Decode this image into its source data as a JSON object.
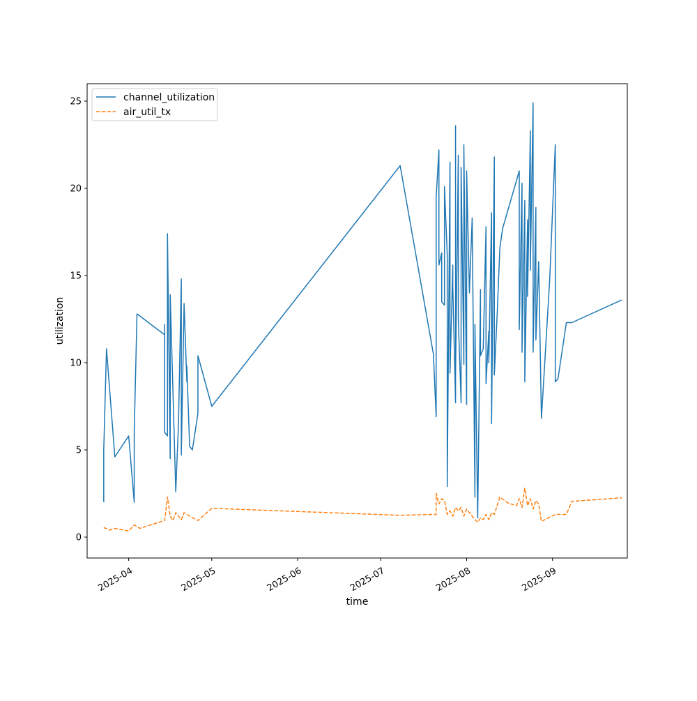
{
  "chart_data": {
    "type": "line",
    "xlabel": "time",
    "ylabel": "utilization",
    "x_axis_type": "date",
    "xlim": [
      "2025-03-17",
      "2025-09-28"
    ],
    "ylim": [
      -1.2,
      26.0
    ],
    "x_ticks": [
      "2025-04-01",
      "2025-05-01",
      "2025-06-01",
      "2025-07-01",
      "2025-08-01",
      "2025-09-01"
    ],
    "x_tick_labels": [
      "2025-04",
      "2025-05",
      "2025-06",
      "2025-07",
      "2025-08",
      "2025-09"
    ],
    "y_ticks": [
      0,
      5,
      10,
      15,
      20,
      25
    ],
    "y_tick_labels": [
      "0",
      "5",
      "10",
      "15",
      "20",
      "25"
    ],
    "grid": false,
    "legend_position": "upper left",
    "series": [
      {
        "name": "channel_utilization",
        "color": "#1f77b4",
        "dash": "solid",
        "points": [
          [
            "2025-03-23",
            2.0
          ],
          [
            "2025-03-23",
            5.0
          ],
          [
            "2025-03-24",
            10.8
          ],
          [
            "2025-03-27",
            4.6
          ],
          [
            "2025-04-01",
            5.8
          ],
          [
            "2025-04-03",
            2.0
          ],
          [
            "2025-04-03",
            6.0
          ],
          [
            "2025-04-04",
            12.8
          ],
          [
            "2025-04-14",
            11.6
          ],
          [
            "2025-04-14",
            12.2
          ],
          [
            "2025-04-14",
            6.0
          ],
          [
            "2025-04-15",
            5.8
          ],
          [
            "2025-04-15",
            17.4
          ],
          [
            "2025-04-16",
            4.5
          ],
          [
            "2025-04-16",
            13.9
          ],
          [
            "2025-04-18",
            2.6
          ],
          [
            "2025-04-19",
            6.6
          ],
          [
            "2025-04-20",
            14.8
          ],
          [
            "2025-04-20",
            4.7
          ],
          [
            "2025-04-21",
            13.4
          ],
          [
            "2025-04-22",
            8.9
          ],
          [
            "2025-04-22",
            9.8
          ],
          [
            "2025-04-23",
            5.2
          ],
          [
            "2025-04-24",
            5.0
          ],
          [
            "2025-04-26",
            7.1
          ],
          [
            "2025-04-26",
            10.4
          ],
          [
            "2025-05-01",
            7.5
          ],
          [
            "2025-07-08",
            21.3
          ],
          [
            "2025-07-20",
            10.5
          ],
          [
            "2025-07-21",
            6.9
          ],
          [
            "2025-07-21",
            19.5
          ],
          [
            "2025-07-22",
            22.2
          ],
          [
            "2025-07-22",
            15.6
          ],
          [
            "2025-07-23",
            16.3
          ],
          [
            "2025-07-23",
            13.5
          ],
          [
            "2025-07-24",
            13.3
          ],
          [
            "2025-07-24",
            20.1
          ],
          [
            "2025-07-25",
            16.2
          ],
          [
            "2025-07-25",
            2.9
          ],
          [
            "2025-07-26",
            21.5
          ],
          [
            "2025-07-26",
            9.4
          ],
          [
            "2025-07-27",
            15.6
          ],
          [
            "2025-07-27",
            14.4
          ],
          [
            "2025-07-28",
            7.7
          ],
          [
            "2025-07-28",
            23.6
          ],
          [
            "2025-07-28",
            9.3
          ],
          [
            "2025-07-29",
            21.9
          ],
          [
            "2025-07-29",
            12.5
          ],
          [
            "2025-07-30",
            7.7
          ],
          [
            "2025-07-30",
            21.2
          ],
          [
            "2025-07-31",
            9.9
          ],
          [
            "2025-07-31",
            22.5
          ],
          [
            "2025-08-01",
            7.6
          ],
          [
            "2025-08-01",
            21.0
          ],
          [
            "2025-08-02",
            14.0
          ],
          [
            "2025-08-03",
            18.3
          ],
          [
            "2025-08-04",
            2.3
          ],
          [
            "2025-08-04",
            12.2
          ],
          [
            "2025-08-05",
            1.1
          ],
          [
            "2025-08-06",
            14.2
          ],
          [
            "2025-08-06",
            10.4
          ],
          [
            "2025-08-07",
            10.8
          ],
          [
            "2025-08-08",
            17.8
          ],
          [
            "2025-08-08",
            8.8
          ],
          [
            "2025-08-09",
            11.8
          ],
          [
            "2025-08-09",
            10.0
          ],
          [
            "2025-08-10",
            18.6
          ],
          [
            "2025-08-10",
            6.5
          ],
          [
            "2025-08-11",
            21.8
          ],
          [
            "2025-08-11",
            9.3
          ],
          [
            "2025-08-12",
            12.7
          ],
          [
            "2025-08-13",
            16.6
          ],
          [
            "2025-08-14",
            17.7
          ],
          [
            "2025-08-20",
            21.0
          ],
          [
            "2025-08-20",
            11.9
          ],
          [
            "2025-08-21",
            20.3
          ],
          [
            "2025-08-21",
            10.6
          ],
          [
            "2025-08-22",
            19.3
          ],
          [
            "2025-08-22",
            8.9
          ],
          [
            "2025-08-23",
            18.2
          ],
          [
            "2025-08-23",
            13.8
          ],
          [
            "2025-08-24",
            23.3
          ],
          [
            "2025-08-24",
            15.3
          ],
          [
            "2025-08-25",
            24.9
          ],
          [
            "2025-08-25",
            10.6
          ],
          [
            "2025-08-26",
            18.9
          ],
          [
            "2025-08-26",
            11.3
          ],
          [
            "2025-08-27",
            15.8
          ],
          [
            "2025-08-28",
            6.8
          ],
          [
            "2025-08-31",
            14.8
          ],
          [
            "2025-09-02",
            22.5
          ],
          [
            "2025-09-02",
            8.9
          ],
          [
            "2025-09-03",
            9.1
          ],
          [
            "2025-09-06",
            12.3
          ],
          [
            "2025-09-08",
            12.3
          ],
          [
            "2025-09-26",
            13.6
          ]
        ]
      },
      {
        "name": "air_util_tx",
        "color": "#ff7f0e",
        "dash": "dashed",
        "points": [
          [
            "2025-03-23",
            0.55
          ],
          [
            "2025-03-25",
            0.4
          ],
          [
            "2025-03-27",
            0.5
          ],
          [
            "2025-04-01",
            0.35
          ],
          [
            "2025-04-03",
            0.7
          ],
          [
            "2025-04-05",
            0.5
          ],
          [
            "2025-04-14",
            0.95
          ],
          [
            "2025-04-15",
            2.3
          ],
          [
            "2025-04-16",
            1.2
          ],
          [
            "2025-04-17",
            0.95
          ],
          [
            "2025-04-18",
            1.4
          ],
          [
            "2025-04-20",
            1.0
          ],
          [
            "2025-04-21",
            1.4
          ],
          [
            "2025-04-23",
            1.2
          ],
          [
            "2025-04-26",
            0.95
          ],
          [
            "2025-05-01",
            1.65
          ],
          [
            "2025-07-08",
            1.25
          ],
          [
            "2025-07-20",
            1.3
          ],
          [
            "2025-07-21",
            1.3
          ],
          [
            "2025-07-21",
            2.5
          ],
          [
            "2025-07-22",
            1.9
          ],
          [
            "2025-07-23",
            2.2
          ],
          [
            "2025-07-24",
            2.1
          ],
          [
            "2025-07-25",
            1.3
          ],
          [
            "2025-07-26",
            1.5
          ],
          [
            "2025-07-27",
            1.2
          ],
          [
            "2025-07-28",
            1.7
          ],
          [
            "2025-07-29",
            1.5
          ],
          [
            "2025-07-30",
            1.7
          ],
          [
            "2025-07-31",
            1.2
          ],
          [
            "2025-08-01",
            1.6
          ],
          [
            "2025-08-02",
            1.4
          ],
          [
            "2025-08-03",
            1.2
          ],
          [
            "2025-08-04",
            1.0
          ],
          [
            "2025-08-05",
            0.85
          ],
          [
            "2025-08-06",
            1.1
          ],
          [
            "2025-08-07",
            1.0
          ],
          [
            "2025-08-08",
            1.3
          ],
          [
            "2025-08-09",
            1.0
          ],
          [
            "2025-08-10",
            1.4
          ],
          [
            "2025-08-11",
            1.3
          ],
          [
            "2025-08-13",
            2.3
          ],
          [
            "2025-08-16",
            1.95
          ],
          [
            "2025-08-19",
            1.8
          ],
          [
            "2025-08-20",
            2.2
          ],
          [
            "2025-08-21",
            1.7
          ],
          [
            "2025-08-22",
            2.8
          ],
          [
            "2025-08-23",
            1.8
          ],
          [
            "2025-08-24",
            2.2
          ],
          [
            "2025-08-25",
            1.6
          ],
          [
            "2025-08-26",
            2.1
          ],
          [
            "2025-08-27",
            1.9
          ],
          [
            "2025-08-28",
            0.9
          ],
          [
            "2025-09-02",
            1.3
          ],
          [
            "2025-09-06",
            1.3
          ],
          [
            "2025-09-08",
            2.05
          ],
          [
            "2025-09-26",
            2.25
          ]
        ]
      }
    ]
  }
}
